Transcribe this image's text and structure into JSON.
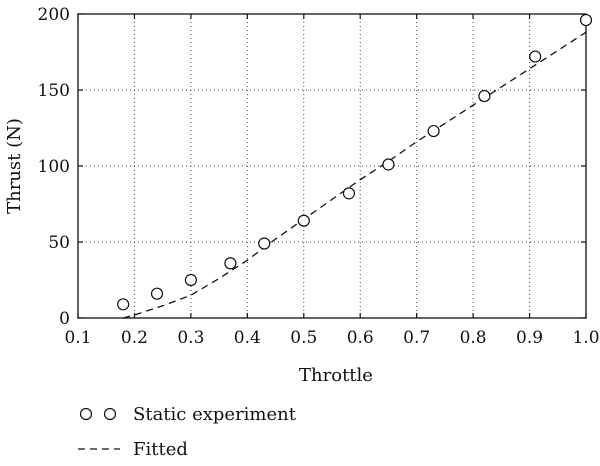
{
  "chart_data": {
    "type": "scatter",
    "xlabel": "Throttle",
    "ylabel": "Thrust (N)",
    "xlim": [
      0.1,
      1.0
    ],
    "ylim": [
      0,
      200
    ],
    "xticks": [
      "0.1",
      "0.2",
      "0.3",
      "0.4",
      "0.5",
      "0.6",
      "0.7",
      "0.8",
      "0.9",
      "1.0"
    ],
    "yticks": [
      "0",
      "50",
      "100",
      "150",
      "200"
    ],
    "grid": true,
    "legend_position": "bottom-left, below plot",
    "series": [
      {
        "name": "Static experiment",
        "style": "open-circle markers",
        "x": [
          0.18,
          0.24,
          0.3,
          0.37,
          0.43,
          0.5,
          0.58,
          0.65,
          0.73,
          0.82,
          0.91,
          1.0
        ],
        "y": [
          9,
          16,
          25,
          36,
          49,
          64,
          82,
          101,
          123,
          146,
          172,
          196
        ]
      },
      {
        "name": "Fitted",
        "style": "dashed line",
        "x": [
          0.18,
          0.2,
          0.25,
          0.3,
          0.35,
          0.4,
          0.45,
          0.5,
          0.55,
          0.6,
          0.65,
          0.7,
          0.75,
          0.8,
          0.85,
          0.9,
          0.95,
          1.0
        ],
        "y": [
          0,
          2,
          8,
          15,
          26,
          38,
          52,
          65,
          78,
          91,
          103,
          116,
          128,
          140,
          152,
          164,
          176,
          188
        ]
      }
    ]
  }
}
